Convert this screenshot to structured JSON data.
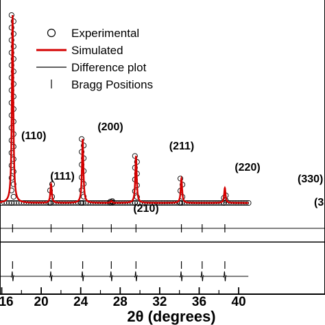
{
  "chart_data": {
    "type": "line",
    "xlabel": "2θ (degrees)",
    "x_ticks": [
      "16",
      "20",
      "24",
      "28",
      "32",
      "36",
      "40"
    ],
    "tick_values": [
      16,
      20,
      24,
      28,
      32,
      36,
      40
    ],
    "xlim": [
      16,
      41
    ],
    "legend": {
      "position": "top-center",
      "entries": [
        {
          "label": "Experimental",
          "marker": "open-circle"
        },
        {
          "label": "Simulated",
          "marker": "red-line"
        },
        {
          "label": "Difference plot",
          "marker": "black-line"
        },
        {
          "label": "Bragg Positions",
          "marker": "vertical-tick"
        }
      ]
    },
    "peaks": [
      {
        "label": "(110)",
        "two_theta": 17.1,
        "relative_intensity": 1.0
      },
      {
        "label": "(111)",
        "two_theta": 21.0,
        "relative_intensity": 0.1
      },
      {
        "label": "(200)",
        "two_theta": 24.2,
        "relative_intensity": 0.34
      },
      {
        "label": "(210)",
        "two_theta": 27.1,
        "relative_intensity": 0.01
      },
      {
        "label": "(211)",
        "two_theta": 29.6,
        "relative_intensity": 0.25
      },
      {
        "label": "(220)",
        "two_theta": 34.2,
        "relative_intensity": 0.13
      },
      {
        "label": "(330)",
        "two_theta": 38.6,
        "relative_intensity": 0.04
      },
      {
        "label": "(3",
        "two_theta": 38.6,
        "relative_intensity": 0.04
      }
    ],
    "extra_bragg_positions": [
      36.3
    ],
    "series": [
      {
        "name": "Experimental",
        "color": "#000000",
        "style": "open-circles"
      },
      {
        "name": "Simulated",
        "color": "#d40000",
        "style": "line"
      },
      {
        "name": "Difference plot",
        "color": "#000000",
        "style": "line"
      },
      {
        "name": "Bragg Positions",
        "color": "#000000",
        "style": "ticks"
      }
    ]
  }
}
